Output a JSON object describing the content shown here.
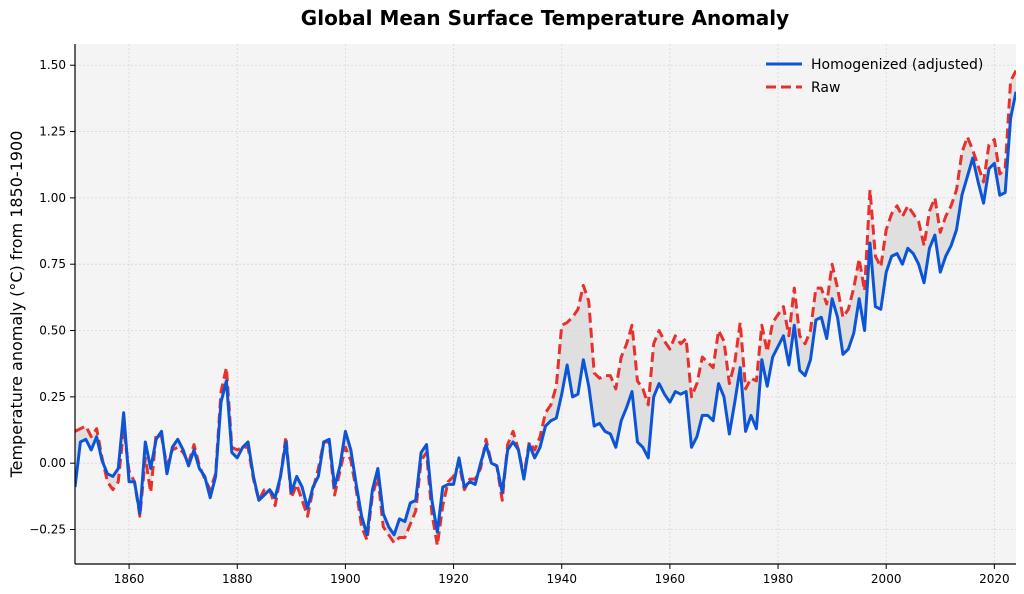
{
  "chart_data": {
    "type": "line",
    "title": "Global Mean Surface Temperature Anomaly",
    "xlabel": "",
    "ylabel": "Temperature anomaly (°C) from 1850-1900",
    "xlim": [
      1850,
      2024
    ],
    "ylim": [
      -0.38,
      1.58
    ],
    "xticks": [
      1860,
      1880,
      1900,
      1920,
      1940,
      1960,
      1980,
      2000,
      2020
    ],
    "yticks": [
      -0.25,
      0.0,
      0.25,
      0.5,
      0.75,
      1.0,
      1.25,
      1.5
    ],
    "ytick_labels": [
      "−0.25",
      "0.00",
      "0.25",
      "0.50",
      "0.75",
      "1.00",
      "1.25",
      "1.50"
    ],
    "grid": true,
    "legend_position": "top-right",
    "difference_shading": true,
    "colors": {
      "homogenized": "#0b55d6",
      "raw": "#e8302d",
      "background": "#f4f4f4",
      "shade": "#d8d8d8"
    },
    "series": [
      {
        "name": "Homogenized (adjusted)",
        "style": "solid",
        "x_start": 1850,
        "values": [
          -0.09,
          0.08,
          0.09,
          0.05,
          0.1,
          0.01,
          -0.04,
          -0.05,
          -0.02,
          0.19,
          -0.07,
          -0.07,
          -0.19,
          0.08,
          -0.02,
          0.09,
          0.12,
          -0.04,
          0.06,
          0.09,
          0.05,
          -0.01,
          0.05,
          -0.02,
          -0.05,
          -0.13,
          -0.05,
          0.23,
          0.31,
          0.04,
          0.02,
          0.06,
          0.08,
          -0.05,
          -0.14,
          -0.12,
          -0.1,
          -0.13,
          -0.05,
          0.08,
          -0.11,
          -0.05,
          -0.09,
          -0.17,
          -0.09,
          -0.05,
          0.08,
          0.09,
          -0.09,
          -0.01,
          0.12,
          0.05,
          -0.08,
          -0.2,
          -0.27,
          -0.1,
          -0.02,
          -0.19,
          -0.24,
          -0.27,
          -0.21,
          -0.22,
          -0.15,
          -0.14,
          0.04,
          0.07,
          -0.14,
          -0.26,
          -0.09,
          -0.08,
          -0.08,
          0.02,
          -0.09,
          -0.07,
          -0.08,
          0.0,
          0.07,
          0.0,
          -0.01,
          -0.11,
          0.05,
          0.08,
          0.05,
          -0.06,
          0.07,
          0.02,
          0.06,
          0.14,
          0.16,
          0.17,
          0.26,
          0.37,
          0.25,
          0.26,
          0.39,
          0.29,
          0.14,
          0.15,
          0.12,
          0.11,
          0.06,
          0.16,
          0.21,
          0.27,
          0.08,
          0.06,
          0.02,
          0.25,
          0.3,
          0.26,
          0.23,
          0.27,
          0.26,
          0.27,
          0.06,
          0.1,
          0.18,
          0.18,
          0.16,
          0.3,
          0.25,
          0.11,
          0.23,
          0.36,
          0.12,
          0.18,
          0.13,
          0.39,
          0.29,
          0.4,
          0.44,
          0.48,
          0.37,
          0.52,
          0.35,
          0.33,
          0.39,
          0.54,
          0.55,
          0.47,
          0.62,
          0.55,
          0.41,
          0.43,
          0.49,
          0.62,
          0.5,
          0.83,
          0.59,
          0.58,
          0.72,
          0.78,
          0.79,
          0.75,
          0.81,
          0.79,
          0.75,
          0.68,
          0.81,
          0.86,
          0.72,
          0.78,
          0.82,
          0.88,
          1.01,
          1.08,
          1.15,
          1.06,
          0.98,
          1.11,
          1.13,
          1.01,
          1.02,
          1.3,
          1.4
        ]
      },
      {
        "name": "Raw",
        "style": "dashed",
        "x_start": 1850,
        "values": [
          0.12,
          0.13,
          0.14,
          0.1,
          0.13,
          0.02,
          -0.07,
          -0.1,
          -0.07,
          0.13,
          -0.03,
          -0.07,
          -0.2,
          0.02,
          -0.11,
          0.11,
          0.1,
          -0.01,
          0.05,
          0.06,
          0.04,
          0.0,
          0.07,
          -0.01,
          -0.06,
          -0.1,
          -0.04,
          0.27,
          0.36,
          0.06,
          0.05,
          0.06,
          0.06,
          -0.06,
          -0.14,
          -0.1,
          -0.1,
          -0.16,
          -0.05,
          0.1,
          -0.13,
          -0.08,
          -0.14,
          -0.2,
          -0.1,
          -0.02,
          0.08,
          0.08,
          -0.12,
          -0.03,
          0.06,
          0.01,
          -0.1,
          -0.24,
          -0.29,
          -0.12,
          -0.05,
          -0.24,
          -0.27,
          -0.3,
          -0.28,
          -0.28,
          -0.23,
          -0.18,
          0.01,
          0.04,
          -0.19,
          -0.31,
          -0.16,
          -0.07,
          -0.05,
          0.0,
          -0.1,
          -0.06,
          -0.06,
          -0.02,
          0.09,
          0.0,
          -0.01,
          -0.14,
          0.07,
          0.12,
          0.05,
          -0.05,
          0.08,
          0.05,
          0.1,
          0.19,
          0.22,
          0.29,
          0.52,
          0.53,
          0.55,
          0.58,
          0.67,
          0.61,
          0.34,
          0.32,
          0.33,
          0.33,
          0.28,
          0.4,
          0.45,
          0.52,
          0.31,
          0.28,
          0.22,
          0.45,
          0.5,
          0.46,
          0.43,
          0.48,
          0.45,
          0.47,
          0.25,
          0.3,
          0.4,
          0.38,
          0.36,
          0.5,
          0.46,
          0.3,
          0.38,
          0.53,
          0.28,
          0.32,
          0.31,
          0.52,
          0.42,
          0.53,
          0.56,
          0.59,
          0.48,
          0.66,
          0.48,
          0.45,
          0.5,
          0.66,
          0.66,
          0.6,
          0.75,
          0.66,
          0.55,
          0.58,
          0.66,
          0.77,
          0.65,
          1.03,
          0.78,
          0.74,
          0.88,
          0.94,
          0.97,
          0.93,
          0.97,
          0.94,
          0.91,
          0.82,
          0.95,
          1.0,
          0.87,
          0.93,
          0.97,
          1.03,
          1.17,
          1.23,
          1.18,
          1.12,
          1.06,
          1.2,
          1.22,
          1.09,
          1.11,
          1.44,
          1.48
        ]
      }
    ]
  }
}
